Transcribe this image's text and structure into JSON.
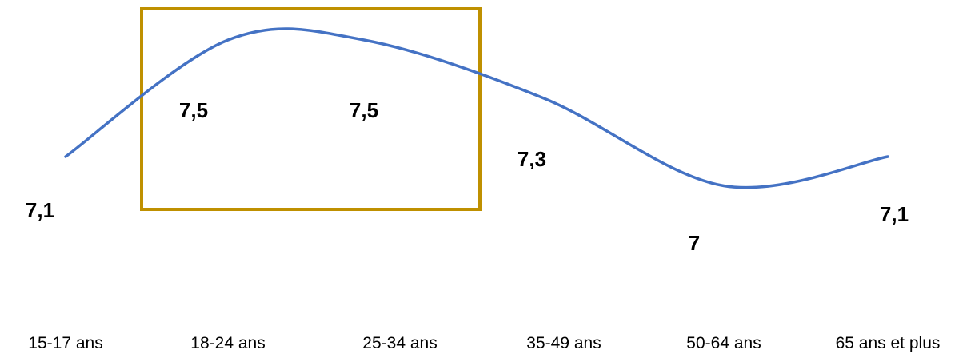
{
  "chart_data": {
    "type": "line",
    "categories": [
      "15-17 ans",
      "18-24 ans",
      "25-34 ans",
      "35-49 ans",
      "50-64 ans",
      "65 ans et plus"
    ],
    "series": [
      {
        "values": [
          7.1,
          7.5,
          7.5,
          7.3,
          7.0,
          7.1
        ],
        "labels": [
          "7,1",
          "7,5",
          "7,5",
          "7,3",
          "7",
          "7,1"
        ],
        "color": "#4472C4"
      }
    ],
    "highlight": {
      "from_category": "18-24 ans",
      "to_category": "25-34 ans",
      "color": "#BF9000"
    },
    "smooth": true,
    "grid": false,
    "legend": "none"
  }
}
